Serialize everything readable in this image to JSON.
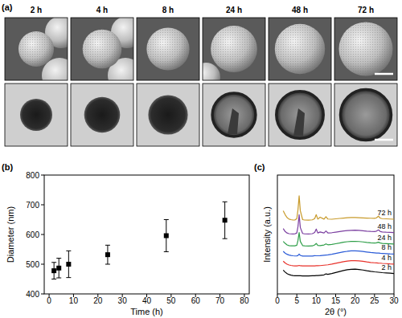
{
  "panel_a": {
    "label": "(a)",
    "times": [
      "2 h",
      "4 h",
      "8 h",
      "24 h",
      "48 h",
      "72 h"
    ]
  },
  "chart_data": [
    {
      "type": "scatter",
      "title": "(b)",
      "x": [
        2,
        4,
        8,
        24,
        48,
        72
      ],
      "values": [
        478,
        487,
        500,
        532,
        596,
        648
      ],
      "errors": [
        28,
        33,
        45,
        32,
        54,
        62
      ],
      "x_label": "Time (h)",
      "y_label": "Diameter (nm)",
      "xlim": [
        -2,
        82
      ],
      "ylim": [
        400,
        800
      ],
      "xticks": [
        0,
        10,
        20,
        30,
        40,
        50,
        60,
        70,
        80
      ],
      "yticks": [
        400,
        500,
        600,
        700,
        800
      ],
      "color": "#000000",
      "marker": "square"
    },
    {
      "type": "line",
      "title": "(c)",
      "x": [
        1.5,
        2,
        2.5,
        3,
        3.5,
        4,
        4.5,
        5,
        5.3,
        5.6,
        5.9,
        6.5,
        7,
        8,
        9,
        9.6,
        10,
        10.4,
        11,
        12,
        12.5,
        13,
        14,
        15,
        16,
        17,
        18,
        19,
        20,
        21,
        22,
        23,
        24,
        25,
        25.5,
        26,
        26.5,
        27,
        28,
        29,
        30
      ],
      "series": [
        {
          "name": "2 h",
          "color": "#000000",
          "values": [
            24,
            22,
            20.5,
            19.5,
            19,
            18.6,
            18.4,
            18.3,
            18.3,
            18.3,
            18.3,
            18.2,
            18.2,
            18.2,
            18.3,
            18.4,
            18.5,
            18.6,
            18.8,
            19.2,
            20.2,
            19.8,
            20.6,
            21.6,
            22.6,
            23.6,
            24.4,
            24.9,
            25,
            24.7,
            24.1,
            23.4,
            22.8,
            22.3,
            22.1,
            21.9,
            21.7,
            21.5,
            21.2,
            20.9,
            20.6
          ]
        },
        {
          "name": "4 h",
          "color": "#e8312a",
          "values": [
            33,
            31.2,
            30,
            29.2,
            28.8,
            28.5,
            28.3,
            28.3,
            28.4,
            28.8,
            28.4,
            28.2,
            28.2,
            28.2,
            28.2,
            28.3,
            28.4,
            28.5,
            28.6,
            29,
            29.2,
            29.4,
            30.1,
            30.9,
            31.7,
            32.5,
            33.1,
            33.5,
            33.6,
            33.4,
            32.9,
            32.3,
            31.8,
            31.4,
            31.3,
            31.1,
            31,
            30.8,
            30.6,
            30.3,
            30.1
          ]
        },
        {
          "name": "8 h",
          "color": "#2a5bd7",
          "values": [
            43,
            41.2,
            40,
            39.2,
            38.8,
            38.5,
            38.3,
            38.4,
            38.8,
            40.2,
            38.9,
            38.2,
            38.2,
            38.2,
            38.2,
            38.6,
            38.5,
            38.5,
            38.6,
            39,
            39.2,
            39.4,
            40,
            40.8,
            41.6,
            42.4,
            43,
            43.4,
            43.5,
            43.3,
            42.8,
            42.3,
            41.8,
            41.5,
            41.3,
            41.2,
            41,
            40.9,
            40.7,
            40.4,
            40.2
          ]
        },
        {
          "name": "24 h",
          "color": "#2e9e48",
          "values": [
            53,
            51,
            49.5,
            48.8,
            48.6,
            48.5,
            48.6,
            49.2,
            54,
            62,
            53,
            48.8,
            48.5,
            48.4,
            48.5,
            49.5,
            51,
            49,
            48.8,
            49.4,
            50.5,
            49.6,
            50,
            50.7,
            51.4,
            52.2,
            52.7,
            53,
            53.1,
            52.9,
            52.5,
            52,
            51.6,
            51.4,
            51.6,
            52.2,
            51.4,
            51,
            50.8,
            50.6,
            50.4
          ]
        },
        {
          "name": "48 h",
          "color": "#7b3fa0",
          "values": [
            66,
            63,
            61.5,
            60.8,
            60.6,
            60.5,
            60.6,
            61.5,
            68,
            80,
            67,
            61,
            60.6,
            60.5,
            60.8,
            62,
            65.5,
            61.5,
            62.5,
            61.5,
            63.5,
            61.6,
            61.8,
            62.4,
            63,
            63.6,
            64,
            64.2,
            64.3,
            64.1,
            63.8,
            63.4,
            63.1,
            63,
            63.4,
            64.6,
            63,
            62.6,
            62.3,
            62.1,
            61.9
          ]
        },
        {
          "name": "72 h",
          "color": "#c89a2a",
          "values": [
            84,
            80,
            77,
            75.5,
            75,
            74.6,
            74.6,
            76,
            85,
            99,
            84,
            75,
            74.6,
            74.5,
            74.8,
            76,
            80,
            75.5,
            77.5,
            75.5,
            78,
            75.6,
            75.4,
            75.8,
            76.2,
            76.6,
            77,
            77.2,
            77.2,
            77,
            76.8,
            76.6,
            76.4,
            76.3,
            76.8,
            78.5,
            76.4,
            76,
            75.8,
            75.6,
            75.4
          ]
        }
      ],
      "x_label": "2θ (°)",
      "y_label": "Intensity (a.u.)",
      "xlim": [
        0,
        30
      ],
      "ylim": [
        0,
        120
      ],
      "xticks": [
        0,
        5,
        10,
        15,
        20,
        25,
        30
      ],
      "tick_labels": "x"
    }
  ]
}
